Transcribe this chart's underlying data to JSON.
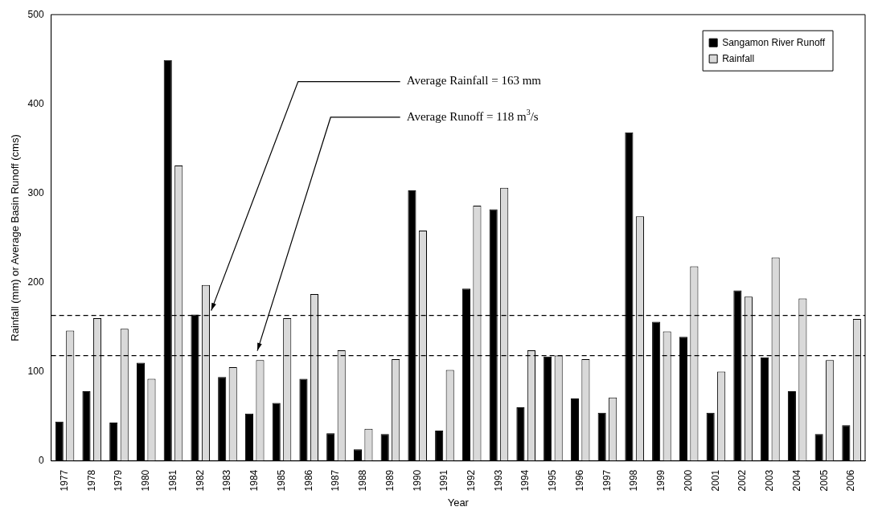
{
  "chart_data": {
    "type": "bar",
    "xlabel": "Year",
    "ylabel": "Rainfall (mm) or Average Basin Runoff (cms)",
    "categories": [
      "1977",
      "1978",
      "1979",
      "1980",
      "1981",
      "1982",
      "1983",
      "1984",
      "1985",
      "1986",
      "1987",
      "1988",
      "1989",
      "1990",
      "1991",
      "1992",
      "1993",
      "1994",
      "1995",
      "1996",
      "1997",
      "1998",
      "1999",
      "2000",
      "2001",
      "2002",
      "2003",
      "2004",
      "2005",
      "2006"
    ],
    "series": [
      {
        "name": "Sangamon River Runoff",
        "color": "#000000",
        "values": [
          44,
          78,
          43,
          110,
          449,
          164,
          94,
          53,
          65,
          92,
          31,
          13,
          30,
          303,
          34,
          193,
          282,
          60,
          117,
          70,
          54,
          368,
          156,
          139,
          54,
          191,
          116,
          78,
          30,
          40
        ]
      },
      {
        "name": "Rainfall",
        "color": "#d9d9d9",
        "values": [
          146,
          160,
          148,
          92,
          331,
          197,
          105,
          113,
          160,
          187,
          124,
          36,
          114,
          258,
          102,
          286,
          306,
          124,
          118,
          114,
          71,
          274,
          145,
          218,
          100,
          184,
          228,
          182,
          113,
          159
        ]
      }
    ],
    "ylim": [
      0,
      500
    ],
    "yticks": [
      0,
      100,
      200,
      300,
      400,
      500
    ],
    "grid": false,
    "legend": "top right",
    "ref_lines": [
      {
        "axis": "y",
        "value": 163,
        "label": "Average Rainfall = 163 mm",
        "color": "#000000",
        "line_style": "dashed"
      },
      {
        "axis": "y",
        "value": 118,
        "label": "Average Runoff = 118 m$^{3}$/s",
        "color": "#000000",
        "line_style": "dashed"
      }
    ]
  }
}
